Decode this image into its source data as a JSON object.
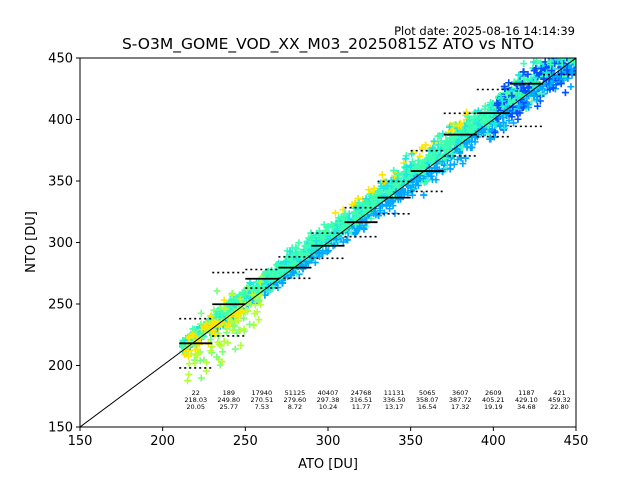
{
  "plot_date": "Plot date: 2025-08-16 14:14:39",
  "chart_data": {
    "type": "scatter",
    "title": "S-O3M_GOME_VOD_XX_M03_20250815Z ATO vs NTO",
    "xlabel": "ATO [DU]",
    "ylabel": "NTO [DU]",
    "xlim": [
      150,
      450
    ],
    "ylim": [
      150,
      450
    ],
    "xticks": [
      150,
      200,
      250,
      300,
      350,
      400,
      450
    ],
    "yticks": [
      150,
      200,
      250,
      300,
      350,
      400,
      450
    ],
    "grid": false,
    "identity_line": [
      [
        150,
        150
      ],
      [
        450,
        450
      ]
    ],
    "bin_width": 20,
    "bins": [
      {
        "x": 220,
        "count": "22",
        "mean": "218.03",
        "std": "20.05",
        "mean_value": 218.03,
        "std_value": 20.05
      },
      {
        "x": 240,
        "count": "189",
        "mean": "249.80",
        "std": "25.77",
        "mean_value": 249.8,
        "std_value": 25.77
      },
      {
        "x": 260,
        "count": "17940",
        "mean": "270.51",
        "std": "7.53",
        "mean_value": 270.51,
        "std_value": 7.53
      },
      {
        "x": 280,
        "count": "51125",
        "mean": "279.60",
        "std": "8.72",
        "mean_value": 279.6,
        "std_value": 8.72
      },
      {
        "x": 300,
        "count": "40407",
        "mean": "297.38",
        "std": "10.24",
        "mean_value": 297.38,
        "std_value": 10.24
      },
      {
        "x": 320,
        "count": "24768",
        "mean": "316.51",
        "std": "11.77",
        "mean_value": 316.51,
        "std_value": 11.77
      },
      {
        "x": 340,
        "count": "11131",
        "mean": "336.50",
        "std": "13.17",
        "mean_value": 336.5,
        "std_value": 13.17
      },
      {
        "x": 360,
        "count": "5065",
        "mean": "358.07",
        "std": "16.54",
        "mean_value": 358.07,
        "std_value": 16.54
      },
      {
        "x": 380,
        "count": "3607",
        "mean": "387.72",
        "std": "17.32",
        "mean_value": 387.72,
        "std_value": 17.32
      },
      {
        "x": 400,
        "count": "2609",
        "mean": "405.21",
        "std": "19.19",
        "mean_value": 405.21,
        "std_value": 19.19
      },
      {
        "x": 420,
        "count": "1187",
        "mean": "429.10",
        "std": "34.68",
        "mean_value": 429.1,
        "std_value": 34.68
      },
      {
        "x": 440,
        "count": "421",
        "mean": "459.32",
        "std": "22.80",
        "mean_value": 459.32,
        "std_value": 22.8
      }
    ],
    "point_colors": {
      "yellow": "#ffe600",
      "yellow_green": "#b4ff3c",
      "green": "#7cff78",
      "aquamarine": "#3cffb0",
      "cyan": "#1ee6e0",
      "azure": "#00a8ff",
      "blue": "#0050ff"
    },
    "line_color": "#000000"
  }
}
